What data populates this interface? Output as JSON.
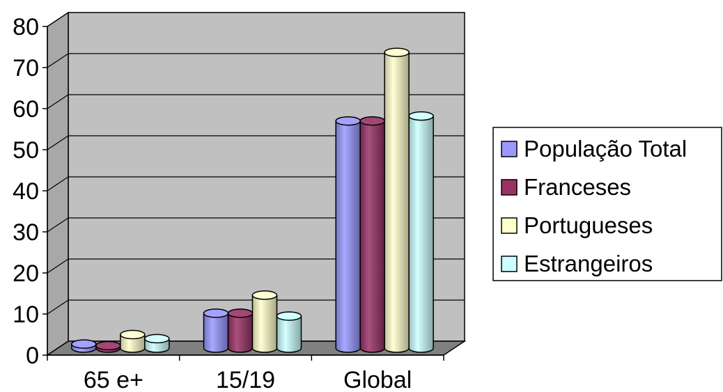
{
  "chart_data": {
    "type": "bar",
    "categories": [
      "65 e+",
      "15/19",
      "Global"
    ],
    "series": [
      {
        "name": "População Total",
        "values": [
          1,
          8.5,
          55.3
        ],
        "color": "#9999ff"
      },
      {
        "name": "Franceses",
        "values": [
          0.6,
          8.5,
          55.3
        ],
        "color": "#993366"
      },
      {
        "name": "Portugueses",
        "values": [
          3.3,
          12.9,
          72.0
        ],
        "color": "#ffffcc"
      },
      {
        "name": "Estrangeiros",
        "values": [
          2.3,
          7.8,
          56.5
        ],
        "color": "#ccffff"
      }
    ],
    "ylim": [
      0,
      80
    ],
    "yticks": [
      "0",
      "10",
      "20",
      "30",
      "40",
      "50",
      "60",
      "70",
      "80"
    ],
    "grid": true,
    "legend_position": "right",
    "title": "",
    "xlabel": "",
    "ylabel": "",
    "wall_color": "#c0c0c0"
  }
}
